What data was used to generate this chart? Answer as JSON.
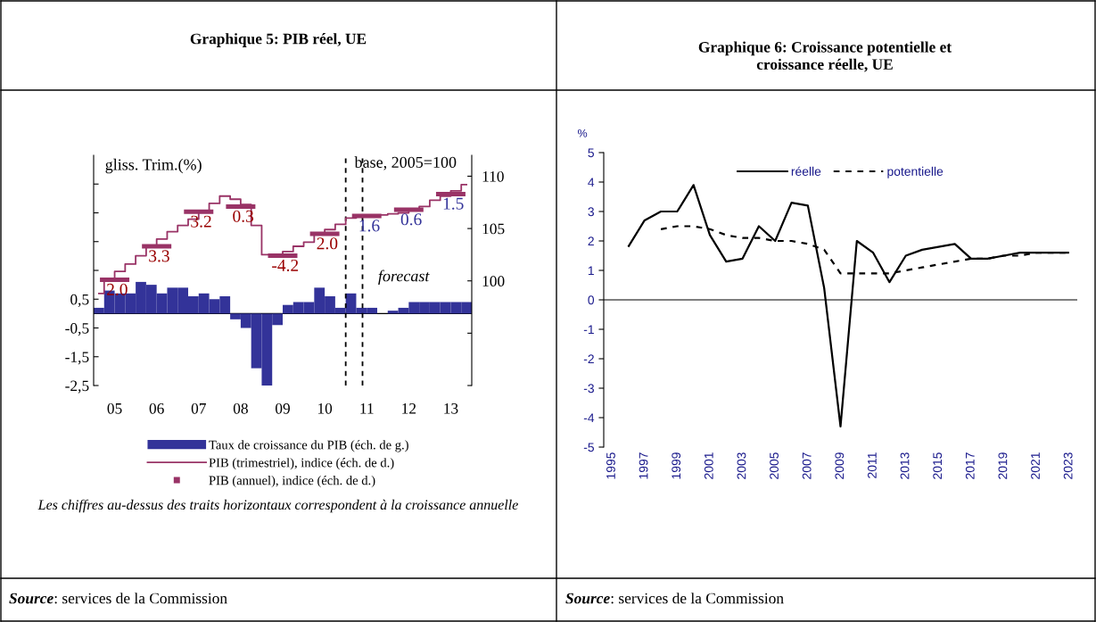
{
  "chart_data": [
    {
      "type": "bar",
      "title": "Graphique 5: PIB réel, UE",
      "ylabel": "gliss. Trim.(%)",
      "y2label": "base, 2005=100",
      "x": [
        4.625,
        4.875,
        5.125,
        5.375,
        5.625,
        5.875,
        6.125,
        6.375,
        6.625,
        6.875,
        7.125,
        7.375,
        7.625,
        7.875,
        8.125,
        8.375,
        8.625,
        8.875,
        9.125,
        9.375,
        9.625,
        9.875,
        10.125,
        10.375,
        10.625,
        10.875,
        11.125,
        11.375,
        11.625,
        11.875,
        12.125,
        12.375,
        12.625,
        12.875,
        13.125,
        13.375
      ],
      "series": [
        {
          "name": "Taux de croissance du PIB (éch. de g.)",
          "type": "bar",
          "color": "#333399",
          "values": [
            0.2,
            0.8,
            0.7,
            0.7,
            1.1,
            1.0,
            0.7,
            0.9,
            0.9,
            0.6,
            0.7,
            0.5,
            0.6,
            -0.2,
            -0.5,
            -1.9,
            -2.5,
            -0.4,
            0.3,
            0.4,
            0.4,
            0.9,
            0.6,
            0.2,
            0.7,
            0.2,
            0.2,
            0.0,
            0.1,
            0.2,
            0.4,
            0.4,
            0.4,
            0.4,
            0.4,
            0.4
          ]
        },
        {
          "name": "PIB (trimestriel), indice (éch. de d.)",
          "type": "step",
          "axis": "y2",
          "color": "#993366",
          "values": [
            98.8,
            100.1,
            100.9,
            101.6,
            102.4,
            103.3,
            104.0,
            104.7,
            105.3,
            105.9,
            106.6,
            107.4,
            108.1,
            107.8,
            107.3,
            105.3,
            102.5,
            102.5,
            102.8,
            103.3,
            103.7,
            104.4,
            104.9,
            105.4,
            106.0,
            106.2,
            106.3,
            106.3,
            106.4,
            106.5,
            106.8,
            107.1,
            107.7,
            108.1,
            108.6,
            109.2
          ]
        },
        {
          "name": "PIB (annuel), indice (éch. de d.)",
          "type": "line",
          "axis": "y2",
          "color": "#993366",
          "x": [
            4.65,
            5.35,
            5.5,
            5.65,
            6.35,
            6.5,
            6.65,
            7.35,
            7.5,
            7.65,
            8.35,
            8.5,
            8.65,
            9.35,
            9.5,
            9.65,
            10.35,
            10.5,
            10.65,
            11.35,
            11.5,
            11.65,
            12.35,
            12.5,
            12.65,
            13.35
          ],
          "values": [
            100.1,
            100.1,
            null,
            103.3,
            103.3,
            null,
            106.6,
            106.6,
            null,
            107.1,
            107.1,
            null,
            102.4,
            102.4,
            null,
            104.5,
            104.5,
            null,
            106.2,
            106.2,
            null,
            106.8,
            106.8,
            null,
            108.3,
            108.3
          ]
        }
      ],
      "xlim": [
        4.5,
        13.5
      ],
      "xticks": [
        {
          "value": 5,
          "label": "05"
        },
        {
          "value": 6,
          "label": "06"
        },
        {
          "value": 7,
          "label": "07"
        },
        {
          "value": 8,
          "label": "08"
        },
        {
          "value": 9,
          "label": "09"
        },
        {
          "value": 10,
          "label": "10"
        },
        {
          "value": 11,
          "label": "11"
        },
        {
          "value": 12,
          "label": "12"
        },
        {
          "value": 13,
          "label": "13"
        }
      ],
      "ylim": [
        -2.5,
        5.5
      ],
      "yticks": [
        {
          "value": -2.5,
          "label": "-2,5"
        },
        {
          "value": -1.5,
          "label": "-1,5"
        },
        {
          "value": -0.5,
          "label": "-0,5"
        },
        {
          "value": 0.5,
          "label": "0,5"
        },
        {
          "value": 1.5,
          "label": null
        },
        {
          "value": 2.5,
          "label": null
        },
        {
          "value": 3.5,
          "label": null
        },
        {
          "value": 4.5,
          "label": null
        }
      ],
      "y2lim": [
        90,
        112
      ],
      "y2ticks": [
        {
          "value": 90,
          "label": null
        },
        {
          "value": 95,
          "label": null
        },
        100,
        105,
        110
      ],
      "ref_lines": [
        {
          "axis": "x",
          "value": 10.5,
          "line_style": "dashed",
          "color": "#000000"
        },
        {
          "axis": "x",
          "value": 10.9,
          "line_style": "dashed",
          "color": "#000000"
        }
      ],
      "annotations": [
        "2.0",
        "3.3",
        "3.2",
        "0.3",
        "-4.2",
        "2.0",
        "1.6",
        "0.6",
        "1.5",
        "forecast",
        "Les chiffres au-dessus des traits horizontaux correspondent à la croissance annuelle",
        "Source: services de la Commission"
      ],
      "legend": "bottom"
    },
    {
      "type": "line",
      "title": "Graphique 6: Croissance potentielle et\ncroissance réelle, UE",
      "ylabel": "%",
      "x": [
        1996,
        1997,
        1998,
        1999,
        2000,
        2001,
        2002,
        2003,
        2004,
        2005,
        2006,
        2007,
        2008,
        2009,
        2010,
        2011,
        2012,
        2013,
        2014,
        2015,
        2016,
        2017,
        2018,
        2019,
        2020,
        2021,
        2022,
        2023
      ],
      "series": [
        {
          "name": "réelle",
          "color": "#000000",
          "line_style": "solid",
          "values": [
            1.8,
            2.7,
            3.0,
            3.0,
            3.9,
            2.2,
            1.3,
            1.4,
            2.5,
            2.0,
            3.3,
            3.2,
            0.4,
            -4.3,
            2.0,
            1.6,
            0.6,
            1.5,
            1.7,
            1.8,
            1.9,
            1.4,
            1.4,
            1.5,
            1.6,
            1.6,
            1.6,
            1.6
          ]
        },
        {
          "name": "potentielle",
          "color": "#000000",
          "line_style": "dashed",
          "x": [
            1998,
            1999,
            2000,
            2001,
            2002,
            2003,
            2004,
            2005,
            2006,
            2007,
            2008,
            2009,
            2010,
            2011,
            2012,
            2013,
            2014,
            2015,
            2016,
            2017,
            2018,
            2019,
            2020,
            2021,
            2022,
            2023
          ],
          "values": [
            2.4,
            2.5,
            2.5,
            2.4,
            2.2,
            2.1,
            2.1,
            2.0,
            2.0,
            1.9,
            1.7,
            0.9,
            0.9,
            0.9,
            0.9,
            1.0,
            1.1,
            1.2,
            1.3,
            1.4,
            1.4,
            1.5,
            1.5,
            1.6,
            1.6,
            1.6
          ]
        }
      ],
      "xlim": [
        1994.5,
        2023.5
      ],
      "xticks": [
        1995,
        1997,
        1999,
        2001,
        2003,
        2005,
        2007,
        2009,
        2011,
        2013,
        2015,
        2017,
        2019,
        2021,
        2023
      ],
      "ylim": [
        -5,
        5
      ],
      "yticks": [
        -5,
        -4,
        -3,
        -2,
        -1,
        0,
        1,
        2,
        3,
        4,
        5
      ],
      "annotations": [
        "Source: services de la Commission"
      ],
      "legend": "top"
    }
  ]
}
